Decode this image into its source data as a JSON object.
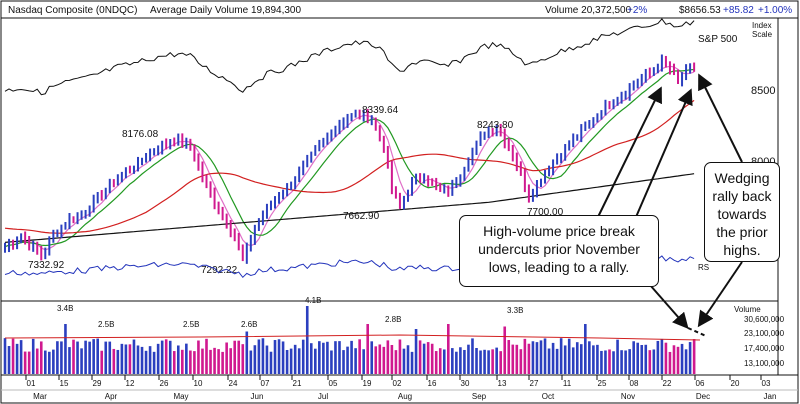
{
  "header": {
    "symbol": "Nasdaq Composite   (0NDQC)",
    "avg_volume": "Average Daily Volume 19,894,300",
    "volume": "Volume 20,372,500",
    "volume_change": "+2%",
    "price": "$8656.53",
    "change": "+85.82",
    "change_pct": "+1.00%"
  },
  "scale_label": [
    "Index",
    "Scale"
  ],
  "sp500_label": "S&P 500",
  "rs_label": "RS",
  "volume_title": "Volume",
  "colors": {
    "up": "#2b3fbf",
    "down": "#d0198f",
    "ma10": "#e070c8",
    "ma21": "#229922",
    "ma50": "#d22020",
    "ma200": "#111111",
    "rs": "#2233bb"
  },
  "callouts": {
    "left": "High-volume price break undercuts prior November lows, leading to a rally.",
    "right": "Wedging rally back towards the prior highs."
  },
  "chart_data": {
    "type": "candlestick",
    "price_axis": {
      "ticks": [
        8000,
        8500
      ],
      "tick_labels": [
        "8000",
        "8500"
      ],
      "ylim": [
        7150,
        8800
      ]
    },
    "volume_axis": {
      "ticks": [
        30600000,
        23100000,
        17400000,
        13100000
      ],
      "tick_labels": [
        "30,600,000",
        "23,100,000",
        "17,400,000",
        "13,100,000"
      ]
    },
    "x_axis": {
      "day_ticks": [
        "01",
        "15",
        "29",
        "12",
        "26",
        "10",
        "24",
        "07",
        "21",
        "05",
        "19",
        "02",
        "16",
        "30",
        "13",
        "27",
        "11",
        "25",
        "08",
        "22",
        "06",
        "20",
        "03"
      ],
      "months": [
        "Mar",
        "Apr",
        "May",
        "Jun",
        "Jul",
        "Aug",
        "Sep",
        "Oct",
        "Nov",
        "Dec",
        "Jan"
      ]
    },
    "annotations": [
      {
        "label": "7332.92",
        "value": 7332.92
      },
      {
        "label": "8176.08",
        "value": 8176.08
      },
      {
        "label": "7292.22",
        "value": 7292.22
      },
      {
        "label": "8339.64",
        "value": 8339.64
      },
      {
        "label": "7662.90",
        "value": 7662.9
      },
      {
        "label": "8243.80",
        "value": 8243.8
      },
      {
        "label": "7700.00",
        "value": 7700.0
      }
    ],
    "volume_labels": [
      "3.4B",
      "2.5B",
      "2.5B",
      "2.6B",
      "4.1B",
      "2.8B",
      "3.3B"
    ],
    "price_path": [
      [
        0,
        7390
      ],
      [
        4,
        7460
      ],
      [
        7,
        7380
      ],
      [
        9,
        7330
      ],
      [
        12,
        7470
      ],
      [
        16,
        7580
      ],
      [
        20,
        7640
      ],
      [
        24,
        7760
      ],
      [
        28,
        7880
      ],
      [
        32,
        7950
      ],
      [
        36,
        8050
      ],
      [
        40,
        8120
      ],
      [
        43,
        8150
      ],
      [
        46,
        8090
      ],
      [
        49,
        7880
      ],
      [
        52,
        7700
      ],
      [
        55,
        7560
      ],
      [
        57,
        7460
      ],
      [
        59,
        7300
      ],
      [
        62,
        7520
      ],
      [
        66,
        7700
      ],
      [
        70,
        7800
      ],
      [
        74,
        7950
      ],
      [
        78,
        8100
      ],
      [
        82,
        8230
      ],
      [
        85,
        8300
      ],
      [
        88,
        8320
      ],
      [
        91,
        8290
      ],
      [
        94,
        8090
      ],
      [
        96,
        7800
      ],
      [
        98,
        7670
      ],
      [
        101,
        7850
      ],
      [
        104,
        7890
      ],
      [
        107,
        7800
      ],
      [
        110,
        7780
      ],
      [
        113,
        7900
      ],
      [
        116,
        8060
      ],
      [
        119,
        8200
      ],
      [
        122,
        8230
      ],
      [
        125,
        8090
      ],
      [
        128,
        7900
      ],
      [
        130,
        7750
      ],
      [
        133,
        7870
      ],
      [
        136,
        7990
      ],
      [
        139,
        8080
      ],
      [
        142,
        8170
      ],
      [
        145,
        8260
      ],
      [
        148,
        8350
      ],
      [
        151,
        8430
      ],
      [
        154,
        8470
      ],
      [
        157,
        8560
      ],
      [
        160,
        8610
      ],
      [
        163,
        8690
      ],
      [
        165,
        8640
      ],
      [
        167,
        8550
      ],
      [
        169,
        8620
      ],
      [
        171,
        8660
      ]
    ],
    "series": [
      {
        "name": "S&P 500"
      },
      {
        "name": "RS"
      }
    ]
  }
}
